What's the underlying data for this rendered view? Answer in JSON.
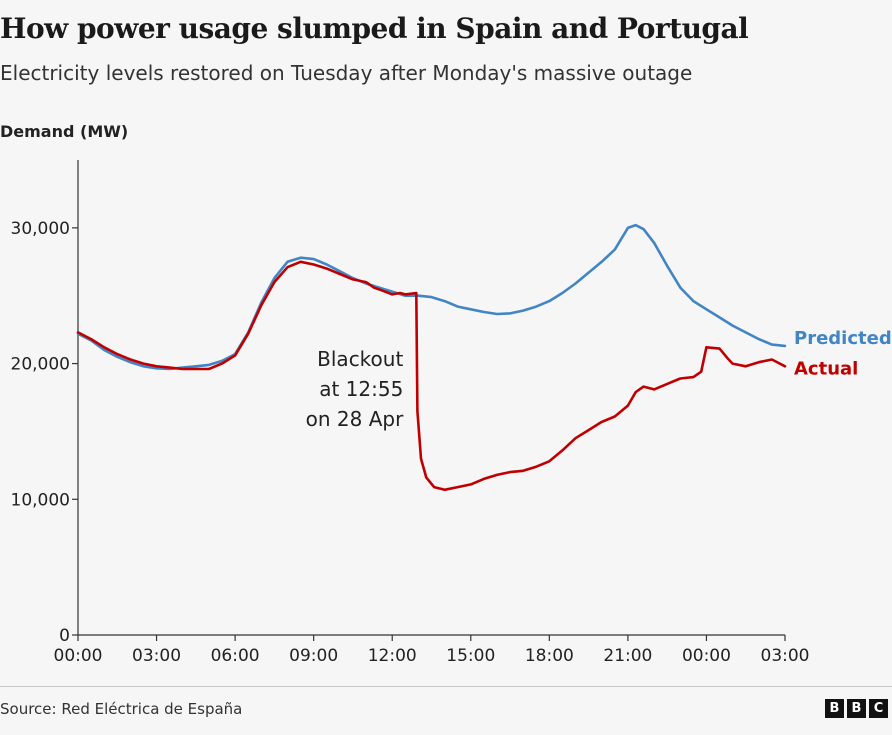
{
  "title": "How power usage slumped in Spain and Portugal",
  "subtitle": "Electricity levels restored on Tuesday after Monday's massive outage",
  "source": "Source: Red Eléctrica de España",
  "logo": [
    "B",
    "B",
    "C"
  ],
  "colors": {
    "predicted": "#4285c5",
    "actual": "#c00000",
    "axis": "#333333"
  },
  "chart_data": {
    "type": "line",
    "ylabel": "Demand (MW)",
    "xlabel": "",
    "ylim": [
      0,
      35000
    ],
    "xlim": [
      0,
      27
    ],
    "x_unit": "hours from 00:00 on 28 Apr",
    "yticks": [
      {
        "value": 0,
        "label": "0"
      },
      {
        "value": 10000,
        "label": "10,000"
      },
      {
        "value": 20000,
        "label": "20,000"
      },
      {
        "value": 30000,
        "label": "30,000"
      }
    ],
    "xticks": [
      {
        "value": 0,
        "label": "00:00"
      },
      {
        "value": 3,
        "label": "03:00"
      },
      {
        "value": 6,
        "label": "06:00"
      },
      {
        "value": 9,
        "label": "09:00"
      },
      {
        "value": 12,
        "label": "12:00"
      },
      {
        "value": 15,
        "label": "15:00"
      },
      {
        "value": 18,
        "label": "18:00"
      },
      {
        "value": 21,
        "label": "21:00"
      },
      {
        "value": 24,
        "label": "00:00"
      },
      {
        "value": 27,
        "label": "03:00"
      }
    ],
    "series": [
      {
        "name": "Predicted",
        "color": "#4285c5",
        "points": [
          [
            0,
            22200
          ],
          [
            0.5,
            21700
          ],
          [
            1,
            21000
          ],
          [
            1.5,
            20500
          ],
          [
            2,
            20100
          ],
          [
            2.5,
            19800
          ],
          [
            3,
            19650
          ],
          [
            3.5,
            19600
          ],
          [
            4,
            19700
          ],
          [
            4.5,
            19800
          ],
          [
            5,
            19900
          ],
          [
            5.5,
            20200
          ],
          [
            6,
            20700
          ],
          [
            6.5,
            22300
          ],
          [
            7,
            24500
          ],
          [
            7.5,
            26300
          ],
          [
            8,
            27500
          ],
          [
            8.5,
            27800
          ],
          [
            9,
            27700
          ],
          [
            9.5,
            27300
          ],
          [
            10,
            26800
          ],
          [
            10.5,
            26300
          ],
          [
            11,
            25900
          ],
          [
            11.5,
            25600
          ],
          [
            12,
            25300
          ],
          [
            12.5,
            25000
          ],
          [
            13,
            25000
          ],
          [
            13.5,
            24900
          ],
          [
            14,
            24600
          ],
          [
            14.5,
            24200
          ],
          [
            15,
            24000
          ],
          [
            15.5,
            23800
          ],
          [
            16,
            23650
          ],
          [
            16.5,
            23700
          ],
          [
            17,
            23900
          ],
          [
            17.5,
            24200
          ],
          [
            18,
            24600
          ],
          [
            18.5,
            25200
          ],
          [
            19,
            25900
          ],
          [
            19.5,
            26700
          ],
          [
            20,
            27500
          ],
          [
            20.5,
            28400
          ],
          [
            21,
            30000
          ],
          [
            21.3,
            30200
          ],
          [
            21.6,
            29900
          ],
          [
            22,
            28900
          ],
          [
            22.5,
            27200
          ],
          [
            23,
            25600
          ],
          [
            23.5,
            24600
          ],
          [
            24,
            24000
          ],
          [
            24.5,
            23400
          ],
          [
            25,
            22800
          ],
          [
            25.5,
            22300
          ],
          [
            26,
            21800
          ],
          [
            26.5,
            21400
          ],
          [
            27,
            21300
          ]
        ]
      },
      {
        "name": "Actual",
        "color": "#c00000",
        "points": [
          [
            0,
            22300
          ],
          [
            0.5,
            21800
          ],
          [
            1,
            21200
          ],
          [
            1.5,
            20700
          ],
          [
            2,
            20300
          ],
          [
            2.5,
            20000
          ],
          [
            3,
            19800
          ],
          [
            3.5,
            19700
          ],
          [
            4,
            19600
          ],
          [
            4.5,
            19600
          ],
          [
            5,
            19600
          ],
          [
            5.5,
            20000
          ],
          [
            6,
            20600
          ],
          [
            6.5,
            22200
          ],
          [
            7,
            24300
          ],
          [
            7.5,
            26000
          ],
          [
            8,
            27100
          ],
          [
            8.5,
            27500
          ],
          [
            9,
            27300
          ],
          [
            9.5,
            27000
          ],
          [
            10,
            26600
          ],
          [
            10.5,
            26200
          ],
          [
            11,
            26000
          ],
          [
            11.3,
            25600
          ],
          [
            11.6,
            25400
          ],
          [
            12,
            25100
          ],
          [
            12.3,
            25200
          ],
          [
            12.5,
            25100
          ],
          [
            12.92,
            25200
          ],
          [
            12.96,
            16500
          ],
          [
            13.1,
            13000
          ],
          [
            13.3,
            11600
          ],
          [
            13.6,
            10900
          ],
          [
            14,
            10700
          ],
          [
            14.5,
            10900
          ],
          [
            15,
            11100
          ],
          [
            15.5,
            11500
          ],
          [
            16,
            11800
          ],
          [
            16.5,
            12000
          ],
          [
            17,
            12100
          ],
          [
            17.5,
            12400
          ],
          [
            18,
            12800
          ],
          [
            18.5,
            13600
          ],
          [
            19,
            14500
          ],
          [
            19.5,
            15100
          ],
          [
            20,
            15700
          ],
          [
            20.5,
            16100
          ],
          [
            21,
            16900
          ],
          [
            21.3,
            17900
          ],
          [
            21.6,
            18300
          ],
          [
            22,
            18100
          ],
          [
            22.5,
            18500
          ],
          [
            23,
            18900
          ],
          [
            23.5,
            19000
          ],
          [
            23.8,
            19400
          ],
          [
            24,
            21200
          ],
          [
            24.5,
            21100
          ],
          [
            24.8,
            20400
          ],
          [
            25,
            20000
          ],
          [
            25.5,
            19800
          ],
          [
            26,
            20100
          ],
          [
            26.5,
            20300
          ],
          [
            26.8,
            20000
          ],
          [
            27,
            19800
          ]
        ]
      }
    ],
    "annotations": [
      {
        "text": [
          "Blackout",
          "at 12:55",
          "on 28 Apr"
        ],
        "x": 12.92
      }
    ],
    "legend": "inline labels at right end of each line"
  }
}
